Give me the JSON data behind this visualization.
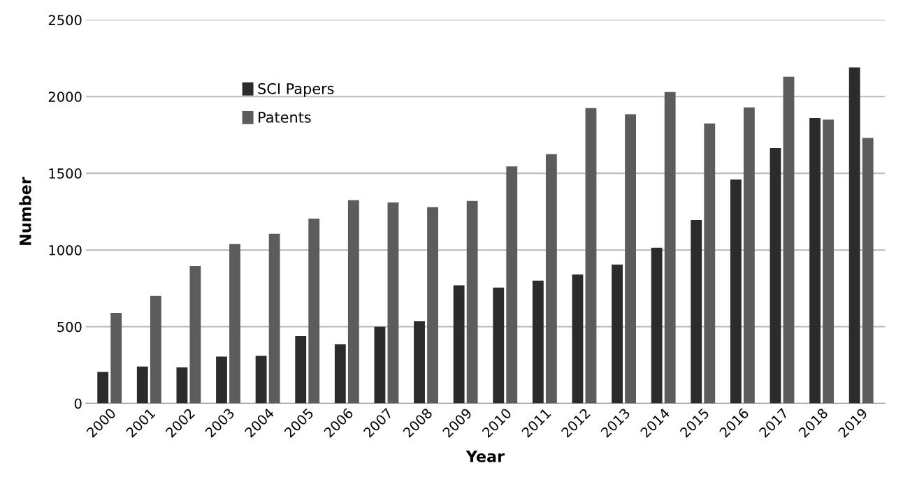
{
  "chart_data": {
    "type": "bar",
    "xlabel": "Year",
    "ylabel": "Number",
    "categories": [
      "2000",
      "2001",
      "2002",
      "2003",
      "2004",
      "2005",
      "2006",
      "2007",
      "2008",
      "2009",
      "2010",
      "2011",
      "2012",
      "2013",
      "2014",
      "2015",
      "2016",
      "2017",
      "2018",
      "2019"
    ],
    "series": [
      {
        "name": "SCI Papers",
        "color": "#2b2b2b",
        "values": [
          205,
          240,
          235,
          305,
          310,
          440,
          385,
          500,
          535,
          770,
          755,
          800,
          840,
          905,
          1015,
          1195,
          1460,
          1665,
          1860,
          2190
        ]
      },
      {
        "name": "Patents",
        "color": "#5c5c5c",
        "values": [
          590,
          700,
          895,
          1040,
          1105,
          1205,
          1325,
          1310,
          1280,
          1320,
          1545,
          1625,
          1925,
          1885,
          2030,
          1825,
          1930,
          2130,
          1850,
          1730
        ]
      }
    ],
    "ylim": [
      0,
      2500
    ],
    "yticks": [
      0,
      500,
      1000,
      1500,
      2000,
      2500
    ],
    "grid": "y",
    "legend": "top left"
  }
}
